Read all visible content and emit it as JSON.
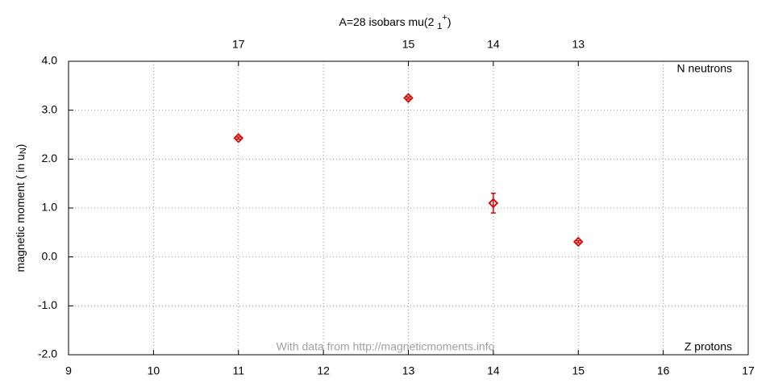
{
  "chart_data": {
    "type": "scatter",
    "title_parts": [
      "A=28 isobars mu(2 ",
      "1",
      "+",
      ")"
    ],
    "ylabel_parts": [
      "magnetic moment ( in u",
      "N",
      ")"
    ],
    "annotations": {
      "top_right": "N neutrons",
      "bottom_right": "Z protons",
      "credit": "With data from http://magneticmoments.info"
    },
    "series": [
      {
        "color": "#e00000",
        "x": [
          11,
          13,
          14,
          15
        ],
        "values": [
          2.43,
          3.25,
          1.1,
          0.31
        ],
        "errors": [
          0.02,
          0.02,
          0.2,
          0.02
        ]
      }
    ],
    "xlim": [
      9,
      17
    ],
    "xticks": [
      9,
      10,
      11,
      12,
      13,
      14,
      15,
      16,
      17
    ],
    "x2ticks": [
      {
        "value": 11,
        "label": "17"
      },
      {
        "value": 13,
        "label": "15"
      },
      {
        "value": 14,
        "label": "14"
      },
      {
        "value": 15,
        "label": "13"
      }
    ],
    "ylim": [
      -2,
      4
    ],
    "yticks": [
      {
        "value": -2,
        "label": "-2.0"
      },
      {
        "value": -1,
        "label": "-1.0"
      },
      {
        "value": 0,
        "label": "0.0"
      },
      {
        "value": 1,
        "label": "1.0"
      },
      {
        "value": 2,
        "label": "2.0"
      },
      {
        "value": 3,
        "label": "3.0"
      },
      {
        "value": 4,
        "label": "4.0"
      }
    ],
    "grid": true
  }
}
